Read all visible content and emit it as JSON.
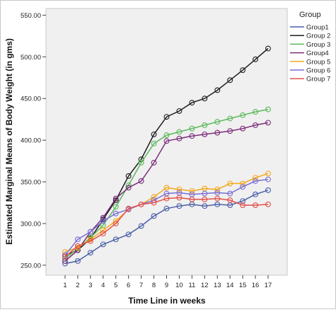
{
  "chart_data": {
    "type": "line",
    "xlabel": "Time Line in weeks",
    "ylabel": "Estimated Marginal Means of Body Weight (in gms)",
    "x": [
      1,
      2,
      3,
      4,
      5,
      6,
      7,
      8,
      9,
      10,
      11,
      12,
      13,
      14,
      15,
      16,
      17
    ],
    "ylim": [
      238,
      558
    ],
    "yticks": [
      250,
      300,
      350,
      400,
      450,
      500,
      550
    ],
    "ytick_labels": [
      "250.00",
      "300.00",
      "350.00",
      "400.00",
      "450.00",
      "500.00",
      "550.00"
    ],
    "grid": false,
    "legend_title": "Group",
    "legend_position": "right",
    "series": [
      {
        "name": "Group1",
        "color": "#4a5fa8",
        "values": [
          252,
          255,
          265,
          275,
          281,
          287,
          297,
          309,
          318,
          321,
          323,
          321,
          323,
          322,
          327,
          335,
          340
        ]
      },
      {
        "name": "Group 2",
        "color": "#1e1e1e",
        "values": [
          262,
          268,
          282,
          305,
          328,
          357,
          377,
          407,
          428,
          435,
          445,
          450,
          460,
          472,
          484,
          497,
          510
        ]
      },
      {
        "name": "Group 3",
        "color": "#5ab85a",
        "values": [
          258,
          270,
          283,
          298,
          320,
          346,
          373,
          396,
          406,
          410,
          414,
          418,
          422,
          426,
          430,
          434,
          437
        ]
      },
      {
        "name": "Group4",
        "color": "#7a2f7a",
        "values": [
          255,
          268,
          290,
          307,
          330,
          343,
          351,
          373,
          399,
          402,
          405,
          407,
          409,
          411,
          414,
          418,
          421
        ]
      },
      {
        "name": "Group 5",
        "color": "#f4a81c",
        "values": [
          266,
          271,
          281,
          292,
          303,
          317,
          323,
          332,
          343,
          341,
          339,
          342,
          341,
          348,
          348,
          355,
          360
        ]
      },
      {
        "name": "Group 6",
        "color": "#7b6fd6",
        "values": [
          262,
          281,
          290,
          303,
          312,
          317,
          323,
          328,
          336,
          337,
          335,
          336,
          337,
          336,
          344,
          351,
          353
        ]
      },
      {
        "name": "Group 7",
        "color": "#e2504a",
        "values": [
          260,
          273,
          279,
          288,
          300,
          318,
          323,
          325,
          330,
          331,
          329,
          329,
          330,
          328,
          322,
          322,
          323
        ]
      }
    ]
  }
}
